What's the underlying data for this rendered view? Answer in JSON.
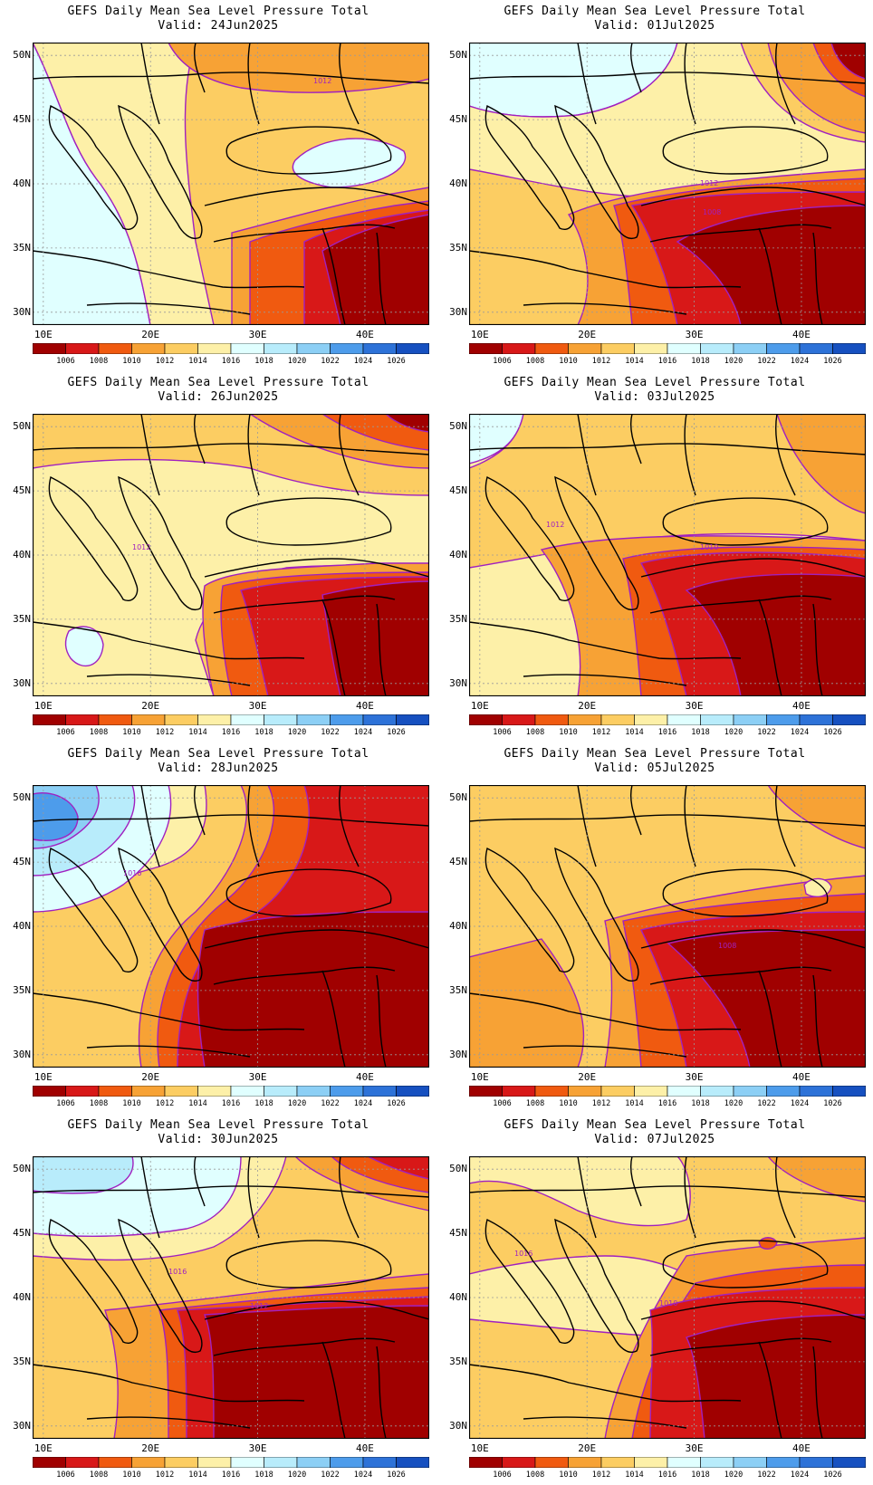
{
  "title": "GEFS Daily Mean Sea Level Pressure Total",
  "lat_labels": [
    "50N",
    "45N",
    "40N",
    "35N",
    "30N"
  ],
  "lon_labels": [
    "10E",
    "20E",
    "30E",
    "40E"
  ],
  "colorbar": {
    "levels": [
      "1006",
      "1008",
      "1010",
      "1012",
      "1014",
      "1016",
      "1018",
      "1020",
      "1022",
      "1024",
      "1026"
    ],
    "colors": [
      "#a00000",
      "#d81818",
      "#f05a10",
      "#f7a235",
      "#fccd62",
      "#fdf0a8",
      "#e0ffff",
      "#b8ecfb",
      "#8ccff5",
      "#4d9ceb",
      "#2d72d8",
      "#1650c0"
    ]
  },
  "panels": [
    {
      "valid": "Valid: 24Jun2025",
      "contour_label": "1012"
    },
    {
      "valid": "Valid: 01Jul2025",
      "contour_label": "1012",
      "contour_label_2": "1008"
    },
    {
      "valid": "Valid: 26Jun2025",
      "contour_label": "1012"
    },
    {
      "valid": "Valid: 03Jul2025",
      "contour_label": "1012",
      "contour_label_2": "1010"
    },
    {
      "valid": "Valid: 28Jun2025",
      "contour_label": "1016"
    },
    {
      "valid": "Valid: 05Jul2025",
      "contour_label": "1008"
    },
    {
      "valid": "Valid: 30Jun2025",
      "contour_label": "1016",
      "contour_label_2": "1012"
    },
    {
      "valid": "Valid: 07Jul2025",
      "contour_label": "1016",
      "contour_label_2": "1010"
    }
  ]
}
